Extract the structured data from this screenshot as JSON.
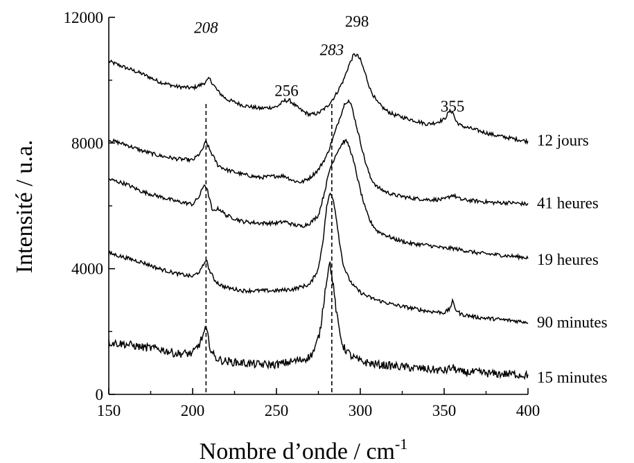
{
  "chart_data": {
    "type": "line",
    "title": "",
    "xlabel": "Nombre d’onde  / cm",
    "xlabel_sup": "-1",
    "ylabel": "Intensité / u.a.",
    "xlim": [
      150,
      400
    ],
    "ylim": [
      0,
      12000
    ],
    "x_ticks": [
      150,
      200,
      250,
      300,
      350,
      400
    ],
    "y_ticks": [
      0,
      4000,
      8000,
      12000
    ],
    "grid": false,
    "legend": "none",
    "reference_lines": [
      208,
      283
    ],
    "peak_labels": [
      {
        "text": "208",
        "x": 208,
        "y": 11500,
        "italic": true
      },
      {
        "text": "283",
        "x": 283,
        "y": 10800,
        "italic": true
      },
      {
        "text": "298",
        "x": 298,
        "y": 11700,
        "italic": false
      },
      {
        "text": "256",
        "x": 256,
        "y": 9500,
        "italic": false
      },
      {
        "text": "355",
        "x": 355,
        "y": 9000,
        "italic": false
      }
    ],
    "series": [
      {
        "name": "12 jours",
        "label_y": 8100,
        "x": [
          150,
          160,
          170,
          180,
          190,
          200,
          205,
          208,
          210,
          215,
          220,
          230,
          240,
          250,
          255,
          258,
          262,
          266,
          270,
          275,
          280,
          285,
          290,
          293,
          296,
          298,
          300,
          303,
          306,
          310,
          315,
          320,
          330,
          340,
          345,
          350,
          353,
          355,
          357,
          360,
          370,
          380,
          390,
          400
        ],
        "y": [
          10600,
          10400,
          10200,
          9950,
          9800,
          9750,
          9850,
          9950,
          10050,
          9650,
          9400,
          9200,
          9100,
          9150,
          9350,
          9350,
          9150,
          9000,
          8900,
          8950,
          9150,
          9500,
          10000,
          10450,
          10800,
          10800,
          10650,
          10200,
          9700,
          9300,
          9050,
          8900,
          8750,
          8600,
          8650,
          8750,
          9000,
          9000,
          8700,
          8550,
          8400,
          8250,
          8150,
          8050
        ]
      },
      {
        "name": "41 heures",
        "label_y": 6100,
        "x": [
          150,
          160,
          170,
          180,
          190,
          200,
          205,
          208,
          210,
          215,
          220,
          230,
          240,
          250,
          255,
          260,
          265,
          270,
          275,
          280,
          285,
          288,
          291,
          293,
          295,
          297,
          300,
          303,
          306,
          310,
          315,
          320,
          330,
          340,
          350,
          355,
          360,
          370,
          380,
          390,
          400
        ],
        "y": [
          8100,
          7950,
          7750,
          7600,
          7500,
          7450,
          7700,
          8050,
          7800,
          7300,
          7150,
          7000,
          6900,
          6950,
          6950,
          6800,
          6750,
          6900,
          7150,
          7600,
          8350,
          8850,
          9300,
          9350,
          9150,
          8700,
          8050,
          7400,
          6900,
          6600,
          6450,
          6350,
          6250,
          6200,
          6200,
          6350,
          6200,
          6150,
          6100,
          6100,
          6050
        ]
      },
      {
        "name": "19 heures",
        "label_y": 4300,
        "x": [
          150,
          160,
          170,
          180,
          190,
          200,
          204,
          207,
          209,
          212,
          214,
          216,
          218,
          220,
          230,
          240,
          250,
          255,
          260,
          265,
          270,
          275,
          278,
          282,
          286,
          290,
          292,
          294,
          297,
          300,
          303,
          306,
          310,
          320,
          330,
          340,
          350,
          355,
          360,
          370,
          380,
          390,
          400
        ],
        "y": [
          6850,
          6700,
          6450,
          6300,
          6150,
          6050,
          6300,
          6700,
          6450,
          5800,
          5900,
          5900,
          5800,
          5700,
          5500,
          5450,
          5450,
          5500,
          5400,
          5350,
          5450,
          5700,
          6300,
          7200,
          7700,
          8050,
          8050,
          7800,
          7200,
          6500,
          5900,
          5500,
          5200,
          4950,
          4800,
          4750,
          4650,
          4650,
          4600,
          4500,
          4450,
          4400,
          4350
        ]
      },
      {
        "name": "90 minutes",
        "label_y": 2300,
        "x": [
          150,
          160,
          170,
          180,
          190,
          200,
          205,
          208,
          210,
          213,
          216,
          220,
          230,
          240,
          250,
          260,
          270,
          275,
          278,
          280,
          282,
          284,
          286,
          288,
          290,
          293,
          296,
          300,
          305,
          310,
          320,
          330,
          340,
          350,
          353,
          355,
          357,
          360,
          370,
          380,
          390,
          400
        ],
        "y": [
          4500,
          4350,
          4200,
          4000,
          3850,
          3750,
          3950,
          4300,
          3950,
          3650,
          3500,
          3400,
          3300,
          3300,
          3300,
          3350,
          3500,
          4000,
          5000,
          6000,
          6400,
          6200,
          5500,
          4700,
          4100,
          3700,
          3450,
          3250,
          3100,
          3000,
          2850,
          2750,
          2650,
          2600,
          2700,
          2950,
          2700,
          2550,
          2450,
          2400,
          2350,
          2300
        ]
      },
      {
        "name": "15 minutes",
        "label_y": 550,
        "x": [
          150,
          160,
          170,
          180,
          190,
          200,
          204,
          206,
          208,
          209,
          211,
          213,
          216,
          220,
          230,
          240,
          250,
          260,
          265,
          270,
          273,
          276,
          279,
          281,
          282,
          284,
          286,
          288,
          290,
          295,
          300,
          310,
          320,
          330,
          340,
          350,
          355,
          360,
          370,
          380,
          390,
          400
        ],
        "y": [
          1650,
          1600,
          1500,
          1450,
          1300,
          1300,
          1600,
          1850,
          2100,
          1850,
          1400,
          1200,
          1100,
          1050,
          1000,
          950,
          950,
          1050,
          1100,
          1200,
          1450,
          2000,
          3300,
          4050,
          4150,
          3400,
          2500,
          1900,
          1500,
          1200,
          1050,
          950,
          900,
          850,
          800,
          750,
          850,
          700,
          700,
          650,
          650,
          600
        ]
      }
    ]
  }
}
